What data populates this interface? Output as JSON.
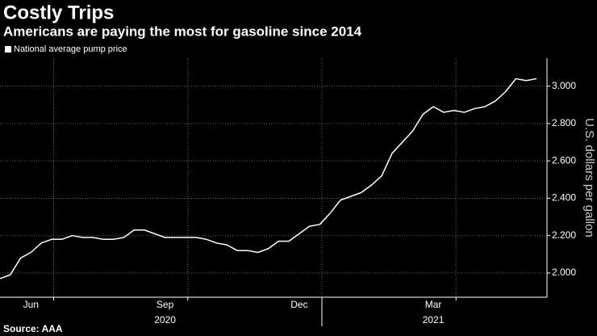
{
  "chart_data": {
    "type": "line",
    "title": "Costly Trips",
    "subtitle": "Americans are paying the most for gasoline since 2014",
    "y_label": "U.S. dollars per gallon",
    "source": "Source: AAA",
    "categories": [
      null,
      null,
      null,
      "Jun",
      null,
      null,
      null,
      null,
      null,
      null,
      null,
      null,
      null,
      null,
      null,
      null,
      "Sep",
      null,
      null,
      null,
      null,
      null,
      null,
      null,
      null,
      null,
      null,
      null,
      null,
      "Dec",
      null,
      null,
      null,
      null,
      null,
      null,
      null,
      null,
      null,
      null,
      null,
      null,
      "Mar",
      null,
      null,
      null,
      null,
      null,
      null,
      null,
      null,
      null,
      null
    ],
    "year_labels": [
      "2020",
      "2021"
    ],
    "series": [
      {
        "name": "National average pump price",
        "color": "#ffffff",
        "values": [
          1.97,
          1.99,
          2.08,
          2.11,
          2.16,
          2.18,
          2.18,
          2.2,
          2.19,
          2.19,
          2.18,
          2.18,
          2.19,
          2.23,
          2.23,
          2.21,
          2.19,
          2.19,
          2.19,
          2.19,
          2.18,
          2.16,
          2.15,
          2.12,
          2.12,
          2.11,
          2.13,
          2.17,
          2.17,
          2.21,
          2.25,
          2.26,
          2.32,
          2.39,
          2.41,
          2.43,
          2.47,
          2.52,
          2.64,
          2.7,
          2.76,
          2.85,
          2.89,
          2.86,
          2.87,
          2.86,
          2.88,
          2.89,
          2.92,
          2.97,
          3.04,
          3.03,
          3.04
        ]
      }
    ],
    "ylim": [
      1.87,
      3.15
    ],
    "yticks": [
      {
        "value": 2,
        "label": "2.000"
      },
      {
        "value": 2.2,
        "label": "2.200"
      },
      {
        "value": 2.4,
        "label": "2.400"
      },
      {
        "value": 2.6,
        "label": "2.600"
      },
      {
        "value": 2.8,
        "label": "2.800"
      },
      {
        "value": 3,
        "label": "3.000"
      }
    ],
    "grid": true
  }
}
